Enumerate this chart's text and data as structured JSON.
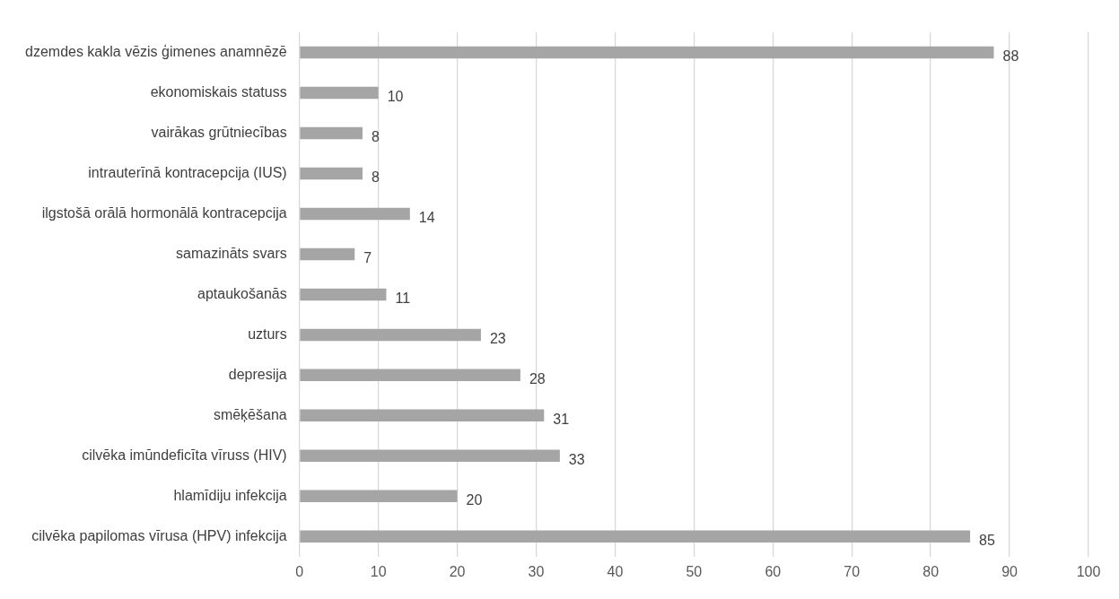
{
  "chart_data": {
    "type": "bar",
    "orientation": "horizontal",
    "categories": [
      "dzemdes kakla vēzis ģimenes anamnēzē",
      "ekonomiskais statuss",
      "vairākas grūtniecības",
      "intrauterīnā kontracepcija (IUS)",
      "ilgstošā orālā hormonālā kontracepcija",
      "samazināts svars",
      "aptaukošanās",
      "uzturs",
      "depresija",
      "smēķēšana",
      "cilvēka imūndeficīta vīruss (HIV)",
      "hlamīdiju infekcija",
      "cilvēka papilomas vīrusa (HPV) infekcija"
    ],
    "values": [
      88,
      10,
      8,
      8,
      14,
      7,
      11,
      23,
      28,
      31,
      33,
      20,
      85
    ],
    "color": "#a5a5a5",
    "xlim": [
      0,
      100
    ],
    "xticks": [
      0,
      10,
      20,
      30,
      40,
      50,
      60,
      70,
      80,
      90,
      100
    ],
    "grid": "x",
    "data_labels": true,
    "legend": false
  }
}
